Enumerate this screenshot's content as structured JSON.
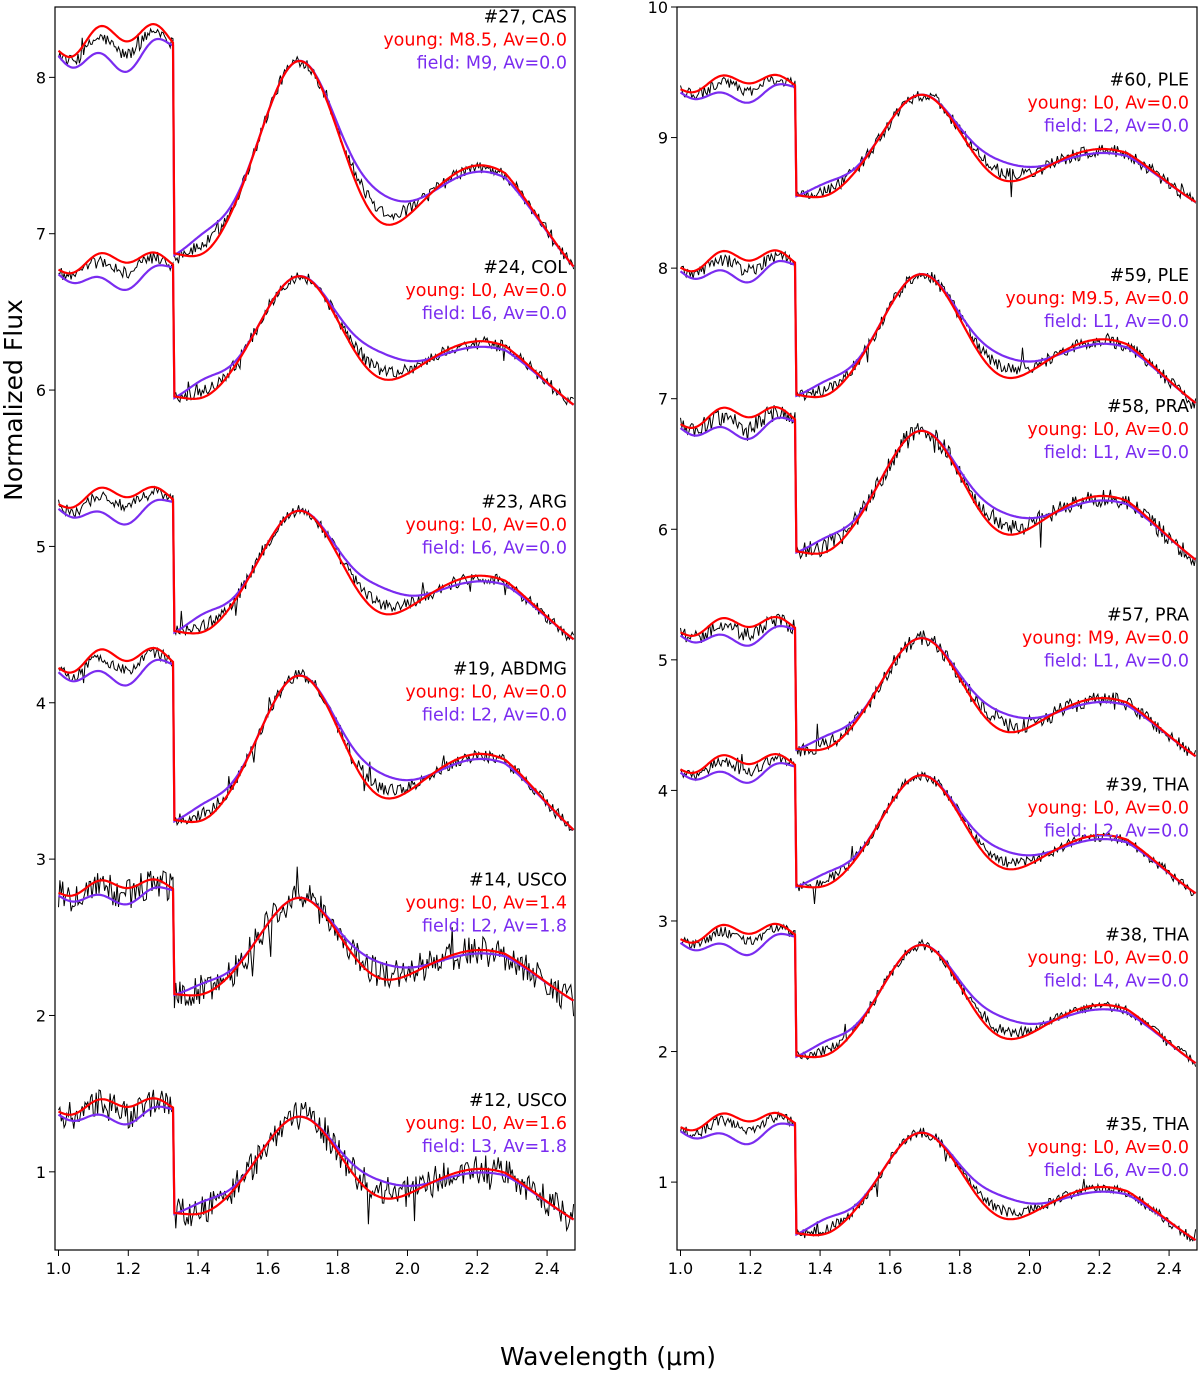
{
  "chart_data": [
    {
      "type": "line",
      "panel": "left",
      "xlabel": "Wavelength (μm)",
      "ylabel": "Normalized Flux",
      "xlim": [
        0.99,
        2.48
      ],
      "ylim": [
        0.5,
        8.45
      ],
      "xticks": [
        1.0,
        1.2,
        1.4,
        1.6,
        1.8,
        2.0,
        2.2,
        2.4
      ],
      "xtick_labels": [
        "1.0",
        "1.2",
        "1.4",
        "1.6",
        "1.8",
        "2.0",
        "2.2",
        "2.4"
      ],
      "yticks": [
        1,
        2,
        3,
        4,
        5,
        6,
        7,
        8
      ],
      "ytick_labels": [
        "1",
        "2",
        "3",
        "4",
        "5",
        "6",
        "7",
        "8"
      ],
      "colors": {
        "observed": "#000000",
        "young": "#ff0000",
        "field": "#7a2cf0"
      },
      "spectra": [
        {
          "object": "#27, CAS",
          "young": "young: M8.5, Av=0.0",
          "field": "field: M9, Av=0.0",
          "offset": 7.5,
          "amp": 0.8,
          "label_y": 8.35,
          "young_diff": 0.6,
          "field_diff": 0.8,
          "noise": 0.04
        },
        {
          "object": "#24, COL",
          "young": "young: L0, Av=0.0",
          "field": "field: L6, Av=0.0",
          "offset": 6.35,
          "amp": 0.5,
          "label_y": 6.75,
          "young_diff": 0.7,
          "field_diff": 1.3,
          "noise": 0.04
        },
        {
          "object": "#23, ARG",
          "young": "young: L0, Av=0.0",
          "field": "field: L6, Av=0.0",
          "offset": 4.85,
          "amp": 0.5,
          "label_y": 5.25,
          "young_diff": 0.7,
          "field_diff": 1.3,
          "noise": 0.04
        },
        {
          "object": "#19, ABDMG",
          "young": "young: L0, Av=0.0",
          "field": "field: L2, Av=0.0",
          "offset": 3.72,
          "amp": 0.6,
          "label_y": 4.18,
          "young_diff": 0.6,
          "field_diff": 0.9,
          "noise": 0.04
        },
        {
          "object": "#14, USCO",
          "young": "young: L0, Av=1.4",
          "field": "field: L2, Av=1.8",
          "offset": 2.45,
          "amp": 0.4,
          "label_y": 2.83,
          "young_diff": 0.6,
          "field_diff": 0.9,
          "noise": 0.1
        },
        {
          "object": "#12, USCO",
          "young": "young: L0, Av=1.6",
          "field": "field: L3, Av=1.8",
          "offset": 1.05,
          "amp": 0.4,
          "label_y": 1.42,
          "young_diff": 0.6,
          "field_diff": 1.0,
          "noise": 0.1
        }
      ]
    },
    {
      "type": "line",
      "panel": "right",
      "xlabel": "Wavelength (μm)",
      "ylabel": "Normalized Flux",
      "xlim": [
        0.99,
        2.48
      ],
      "ylim": [
        0.48,
        10.0
      ],
      "xticks": [
        1.0,
        1.2,
        1.4,
        1.6,
        1.8,
        2.0,
        2.2,
        2.4
      ],
      "xtick_labels": [
        "1.0",
        "1.2",
        "1.4",
        "1.6",
        "1.8",
        "2.0",
        "2.2",
        "2.4"
      ],
      "yticks": [
        1,
        2,
        3,
        4,
        5,
        6,
        7,
        8,
        9,
        10
      ],
      "ytick_labels": [
        "1",
        "2",
        "3",
        "4",
        "5",
        "6",
        "7",
        "8",
        "9",
        "10"
      ],
      "colors": {
        "observed": "#000000",
        "young": "#ff0000",
        "field": "#7a2cf0"
      },
      "spectra": [
        {
          "object": "#60, PLE",
          "young": "young: L0, Av=0.0",
          "field": "field: L2, Av=0.0",
          "offset": 8.95,
          "amp": 0.5,
          "label_y": 9.4,
          "young_diff": 0.7,
          "field_diff": 1.0,
          "noise": 0.05
        },
        {
          "object": "#59, PLE",
          "young": "young: M9.5, Av=0.0",
          "field": "field: L1, Av=0.0",
          "offset": 7.5,
          "amp": 0.6,
          "label_y": 7.9,
          "young_diff": 0.7,
          "field_diff": 0.9,
          "noise": 0.05
        },
        {
          "object": "#58, PRA",
          "young": "young: L0, Av=0.0",
          "field": "field: L1, Av=0.0",
          "offset": 6.3,
          "amp": 0.6,
          "label_y": 6.9,
          "young_diff": 0.7,
          "field_diff": 0.9,
          "noise": 0.07
        },
        {
          "object": "#57, PRA",
          "young": "young: M9, Av=0.0",
          "field": "field: L1, Av=0.0",
          "offset": 4.75,
          "amp": 0.55,
          "label_y": 5.3,
          "young_diff": 0.6,
          "field_diff": 0.9,
          "noise": 0.06
        },
        {
          "object": "#39, THA",
          "young": "young: L0, Av=0.0",
          "field": "field: L2, Av=0.0",
          "offset": 3.7,
          "amp": 0.55,
          "label_y": 4.0,
          "young_diff": 0.6,
          "field_diff": 0.9,
          "noise": 0.04
        },
        {
          "object": "#38, THA",
          "young": "young: L0, Av=0.0",
          "field": "field: L4, Av=0.0",
          "offset": 2.4,
          "amp": 0.55,
          "label_y": 2.85,
          "young_diff": 0.6,
          "field_diff": 1.1,
          "noise": 0.04
        },
        {
          "object": "#35, THA",
          "young": "young: L0, Av=0.0",
          "field": "field: L6, Av=0.0",
          "offset": 1.0,
          "amp": 0.5,
          "label_y": 1.4,
          "young_diff": 0.7,
          "field_diff": 1.3,
          "noise": 0.04
        }
      ]
    }
  ]
}
